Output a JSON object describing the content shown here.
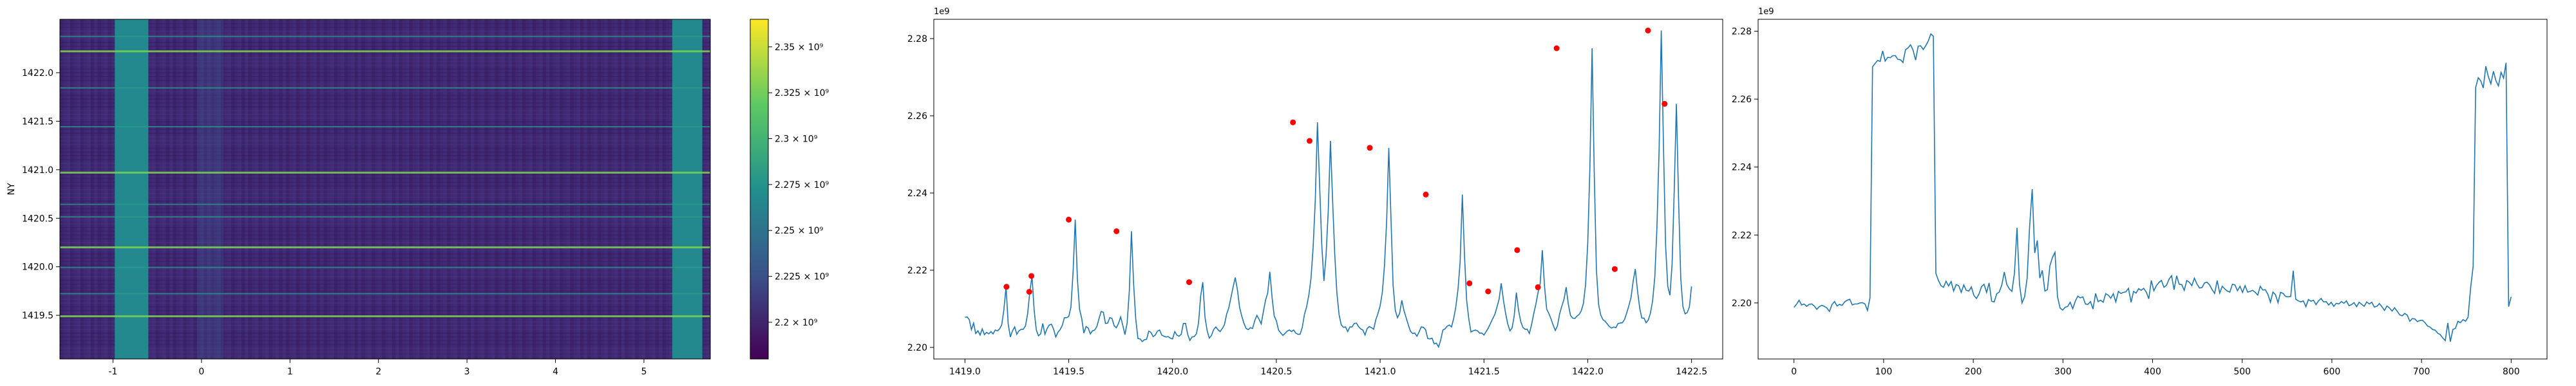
{
  "chart_data": [
    {
      "type": "heatmap",
      "ylabel": "NY",
      "xlim": [
        -1.6,
        5.75
      ],
      "ylim": [
        1419.05,
        1422.55
      ],
      "x_ticks": [
        -1,
        0,
        1,
        2,
        3,
        4,
        5
      ],
      "y_ticks": [
        1419.5,
        1420.0,
        1420.5,
        1421.0,
        1421.5,
        1422.0
      ],
      "bright_column_bands": [
        [
          -0.98,
          -0.6
        ],
        [
          5.32,
          5.66
        ]
      ],
      "bright_row_lines": [
        1419.5,
        1419.73,
        1420.0,
        1420.21,
        1420.52,
        1420.65,
        1420.98,
        1421.45,
        1421.85,
        1422.23,
        1422.38
      ],
      "colorbar": {
        "range": [
          2180000000.0,
          2365000000.0
        ],
        "tick_labels": [
          "2.2 × 10⁹",
          "2.225 × 10⁹",
          "2.25 × 10⁹",
          "2.275 × 10⁹",
          "2.3 × 10⁹",
          "2.325 × 10⁹",
          "2.35 × 10⁹"
        ],
        "tick_values": [
          2200000000.0,
          2225000000.0,
          2250000000.0,
          2275000000.0,
          2300000000.0,
          2325000000.0,
          2350000000.0
        ],
        "colors": [
          "#440154",
          "#3b528b",
          "#21908d",
          "#5dc963",
          "#fde725"
        ]
      }
    },
    {
      "type": "line",
      "offset_label": "1e9",
      "xlim": [
        1418.85,
        1422.65
      ],
      "ylim": [
        2.197,
        2.285
      ],
      "x_ticks": [
        "1419.0",
        "1419.5",
        "1420.0",
        "1420.5",
        "1421.0",
        "1421.5",
        "1422.0",
        "1422.5"
      ],
      "x_tick_values": [
        1419.0,
        1419.5,
        1420.0,
        1420.5,
        1421.0,
        1421.5,
        1422.0,
        1422.5
      ],
      "y_ticks": [
        "2.20",
        "2.22",
        "2.24",
        "2.26",
        "2.28"
      ],
      "y_tick_values": [
        2.2,
        2.22,
        2.24,
        2.26,
        2.28
      ],
      "line_color": "#1f77b4",
      "peak_color": "#ff0000",
      "series": [
        {
          "x_start": 1419.0,
          "x_end": 1422.5,
          "values": [
            2.2078,
            2.2079,
            2.2072,
            2.2046,
            2.2063,
            2.2036,
            2.2043,
            2.2032,
            2.2048,
            2.2033,
            2.2039,
            2.2035,
            2.2041,
            2.2035,
            2.2045,
            2.2043,
            2.2048,
            2.2058,
            2.2097,
            2.2157,
            2.2061,
            2.2027,
            2.2043,
            2.2053,
            2.2034,
            2.2043,
            2.2047,
            2.2047,
            2.2056,
            2.2087,
            2.2144,
            2.2185,
            2.2097,
            2.2045,
            2.203,
            2.2035,
            2.2062,
            2.2034,
            2.2049,
            2.2058,
            2.206,
            2.2047,
            2.2027,
            2.2039,
            2.2046,
            2.2057,
            2.2077,
            2.2077,
            2.208,
            2.2104,
            2.2196,
            2.2331,
            2.2177,
            2.2099,
            2.2075,
            2.2037,
            2.2054,
            2.205,
            2.2035,
            2.2043,
            2.2045,
            2.2054,
            2.2075,
            2.2093,
            2.2091,
            2.2062,
            2.2063,
            2.2077,
            2.2075,
            2.2056,
            2.2051,
            2.2062,
            2.2079,
            2.2057,
            2.2033,
            2.2063,
            2.2146,
            2.2301,
            2.2164,
            2.2073,
            2.2023,
            2.2022,
            2.2015,
            2.202,
            2.2021,
            2.2042,
            2.2039,
            2.2028,
            2.2032,
            2.2042,
            2.2045,
            2.2032,
            2.2029,
            2.2027,
            2.2028,
            2.2024,
            2.2022,
            2.2041,
            2.2032,
            2.2029,
            2.2034,
            2.2062,
            2.2062,
            2.2034,
            2.2018,
            2.2027,
            2.2028,
            2.2035,
            2.2062,
            2.2133,
            2.2169,
            2.2078,
            2.2043,
            2.2024,
            2.2031,
            2.2046,
            2.2053,
            2.2046,
            2.2041,
            2.2049,
            2.2059,
            2.2086,
            2.2102,
            2.2129,
            2.2156,
            2.2181,
            2.2149,
            2.2104,
            2.2081,
            2.2063,
            2.2049,
            2.2046,
            2.2051,
            2.2049,
            2.2069,
            2.2083,
            2.2073,
            2.2061,
            2.2093,
            2.2122,
            2.2141,
            2.2196,
            2.2131,
            2.2082,
            2.2069,
            2.2045,
            2.2038,
            2.2031,
            2.2036,
            2.2042,
            2.2045,
            2.2041,
            2.2045,
            2.2037,
            2.2034,
            2.2034,
            2.2052,
            2.2086,
            2.2105,
            2.2135,
            2.2177,
            2.2258,
            2.2383,
            2.2583,
            2.2421,
            2.2267,
            2.2172,
            2.2238,
            2.2354,
            2.2535,
            2.2384,
            2.2241,
            2.2141,
            2.2085,
            2.2059,
            2.2052,
            2.2053,
            2.2041,
            2.2053,
            2.2053,
            2.2062,
            2.2063,
            2.2054,
            2.2048,
            2.2045,
            2.2032,
            2.2049,
            2.2054,
            2.2051,
            2.2047,
            2.2072,
            2.2088,
            2.2108,
            2.2143,
            2.2212,
            2.2328,
            2.2517,
            2.2335,
            2.2161,
            2.2096,
            2.2077,
            2.2088,
            2.2122,
            2.2096,
            2.2077,
            2.2059,
            2.2042,
            2.2036,
            2.2037,
            2.2029,
            2.204,
            2.2053,
            2.2052,
            2.2046,
            2.2023,
            2.2022,
            2.2024,
            2.2009,
            2.2011,
            2.2001,
            2.2019,
            2.2045,
            2.2048,
            2.2055,
            2.2058,
            2.2053,
            2.2075,
            2.2105,
            2.2151,
            2.2222,
            2.2396,
            2.2237,
            2.2122,
            2.2073,
            2.204,
            2.2043,
            2.2045,
            2.2043,
            2.2037,
            2.2037,
            2.2032,
            2.2041,
            2.205,
            2.2062,
            2.2074,
            2.2085,
            2.2104,
            2.2125,
            2.2166,
            2.2123,
            2.2088,
            2.2061,
            2.2043,
            2.205,
            2.2082,
            2.2142,
            2.2096,
            2.2067,
            2.2052,
            2.2047,
            2.2047,
            2.2036,
            2.2059,
            2.2087,
            2.2112,
            2.2142,
            2.2166,
            2.2252,
            2.2159,
            2.2099,
            2.2088,
            2.2074,
            2.2058,
            2.2044,
            2.2056,
            2.2087,
            2.2107,
            2.2124,
            2.2156,
            2.2113,
            2.2083,
            2.2076,
            2.2075,
            2.2081,
            2.2085,
            2.2095,
            2.2114,
            2.2163,
            2.2272,
            2.2468,
            2.2775,
            2.2454,
            2.2201,
            2.2111,
            2.2084,
            2.2072,
            2.2068,
            2.2061,
            2.2054,
            2.205,
            2.2053,
            2.2051,
            2.2062,
            2.2063,
            2.2064,
            2.2072,
            2.2089,
            2.2108,
            2.2129,
            2.2172,
            2.2203,
            2.2147,
            2.2102,
            2.2076,
            2.2076,
            2.2064,
            2.2071,
            2.2089,
            2.2121,
            2.2183,
            2.2312,
            2.2515,
            2.2821,
            2.2525,
            2.2265,
            2.2158,
            2.2135,
            2.2215,
            2.2411,
            2.2631,
            2.2382,
            2.2178,
            2.2106,
            2.2087,
            2.209,
            2.2105,
            2.2158
          ]
        }
      ],
      "peaks": [
        {
          "x": 1419.2,
          "y": 2.2157
        },
        {
          "x": 1419.31,
          "y": 2.2144
        },
        {
          "x": 1419.32,
          "y": 2.2185
        },
        {
          "x": 1419.5,
          "y": 2.2331
        },
        {
          "x": 1419.73,
          "y": 2.2301
        },
        {
          "x": 1420.08,
          "y": 2.2169
        },
        {
          "x": 1420.58,
          "y": 2.2583
        },
        {
          "x": 1420.66,
          "y": 2.2535
        },
        {
          "x": 1420.95,
          "y": 2.2517
        },
        {
          "x": 1421.22,
          "y": 2.2396
        },
        {
          "x": 1421.43,
          "y": 2.2166
        },
        {
          "x": 1421.52,
          "y": 2.2145
        },
        {
          "x": 1421.66,
          "y": 2.2252
        },
        {
          "x": 1421.76,
          "y": 2.2156
        },
        {
          "x": 1421.85,
          "y": 2.2775
        },
        {
          "x": 1422.13,
          "y": 2.2203
        },
        {
          "x": 1422.29,
          "y": 2.2821
        },
        {
          "x": 1422.37,
          "y": 2.2631
        }
      ]
    },
    {
      "type": "line",
      "offset_label": "1e9",
      "xlim": [
        -40,
        840
      ],
      "ylim": [
        2.1835,
        2.2835
      ],
      "x_ticks": [
        "0",
        "100",
        "200",
        "300",
        "400",
        "500",
        "600",
        "700",
        "800"
      ],
      "x_tick_values": [
        0,
        100,
        200,
        300,
        400,
        500,
        600,
        700,
        800
      ],
      "y_ticks": [
        "2.20",
        "2.22",
        "2.24",
        "2.26",
        "2.28"
      ],
      "y_tick_values": [
        2.2,
        2.22,
        2.24,
        2.26,
        2.28
      ],
      "line_color": "#1f77b4",
      "series": [
        {
          "x_start": 0,
          "x_end": 800,
          "values": [
            2.1987,
            2.1996,
            2.2008,
            2.1994,
            2.1997,
            2.199,
            2.1996,
            2.1997,
            2.1991,
            2.1981,
            2.1989,
            2.1993,
            2.199,
            2.1985,
            2.1975,
            2.1995,
            2.2004,
            2.1991,
            2.1996,
            2.1993,
            2.2003,
            2.2008,
            2.2011,
            2.1994,
            2.1997,
            2.1997,
            2.2,
            2.2001,
            2.1997,
            2.1978,
            2.2015,
            2.2695,
            2.2705,
            2.2714,
            2.2711,
            2.2742,
            2.2712,
            2.2723,
            2.2722,
            2.2728,
            2.2728,
            2.2717,
            2.2716,
            2.2708,
            2.2745,
            2.2751,
            2.276,
            2.2744,
            2.2715,
            2.2756,
            2.2757,
            2.2746,
            2.2757,
            2.2771,
            2.2792,
            2.2785,
            2.2087,
            2.2066,
            2.2051,
            2.2046,
            2.2064,
            2.205,
            2.2063,
            2.2035,
            2.2054,
            2.2051,
            2.2031,
            2.2053,
            2.2037,
            2.2035,
            2.2047,
            2.2022,
            2.2013,
            2.2026,
            2.2048,
            2.2055,
            2.2031,
            2.2059,
            2.2005,
            2.2003,
            2.2027,
            2.2032,
            2.2053,
            2.2091,
            2.2054,
            2.2041,
            2.2034,
            2.2087,
            2.2221,
            2.2054,
            2.2,
            2.2018,
            2.2073,
            2.2226,
            2.2335,
            2.2147,
            2.2184,
            2.2073,
            2.2096,
            2.2035,
            2.2039,
            2.211,
            2.2134,
            2.2149,
            2.2018,
            2.1985,
            2.1979,
            2.1987,
            2.199,
            2.2002,
            2.1983,
            2.2005,
            2.202,
            2.2015,
            2.2018,
            2.1997,
            2.1996,
            2.2004,
            2.1982,
            2.2028,
            2.2004,
            2.2008,
            2.2002,
            2.2027,
            2.2023,
            2.2014,
            2.2027,
            2.2003,
            2.2034,
            2.2028,
            2.2031,
            2.2033,
            2.2043,
            2.2002,
            2.2034,
            2.2029,
            2.2042,
            2.2037,
            2.2043,
            2.2032,
            2.2012,
            2.2066,
            2.2036,
            2.2051,
            2.206,
            2.2066,
            2.2046,
            2.2052,
            2.207,
            2.208,
            2.2039,
            2.208,
            2.2055,
            2.2054,
            2.2037,
            2.2066,
            2.2061,
            2.2051,
            2.2073,
            2.2056,
            2.2044,
            2.2045,
            2.2059,
            2.2061,
            2.2053,
            2.2039,
            2.2028,
            2.2066,
            2.2029,
            2.2049,
            2.2041,
            2.2035,
            2.2032,
            2.2055,
            2.2053,
            2.2036,
            2.2049,
            2.2031,
            2.2051,
            2.2032,
            2.2034,
            2.2037,
            2.2031,
            2.2023,
            2.2049,
            2.2038,
            2.2039,
            2.2026,
            2.2002,
            2.2032,
            2.2024,
            2.2001,
            2.2031,
            2.2028,
            2.2019,
            2.2018,
            2.2019,
            2.2095,
            2.2011,
            2.2006,
            2.2003,
            2.2006,
            2.1989,
            2.201,
            2.2005,
            2.2008,
            2.1995,
            2.2006,
            2.2013,
            2.2003,
            2.2004,
            2.1994,
            2.2002,
            2.199,
            2.1999,
            2.1997,
            2.2004,
            2.1999,
            2.2006,
            2.1992,
            2.1995,
            2.2001,
            2.1989,
            2.2002,
            2.1996,
            2.199,
            2.2003,
            2.1997,
            2.2002,
            2.1988,
            2.199,
            2.1998,
            2.1989,
            2.1978,
            2.1991,
            2.1985,
            2.1976,
            2.1986,
            2.1976,
            2.1965,
            2.1962,
            2.1969,
            2.1964,
            2.1946,
            2.1954,
            2.1953,
            2.1945,
            2.1948,
            2.1949,
            2.1942,
            2.1932,
            2.1929,
            2.1922,
            2.192,
            2.1911,
            2.1907,
            2.1897,
            2.1889,
            2.1941,
            2.1886,
            2.1922,
            2.1925,
            2.1946,
            2.1942,
            2.1951,
            2.1946,
            2.1958,
            2.2045,
            2.2108,
            2.2634,
            2.2663,
            2.2654,
            2.2633,
            2.2697,
            2.2666,
            2.2645,
            2.2682,
            2.2654,
            2.2639,
            2.2679,
            2.2662,
            2.2707,
            2.1989,
            2.2018
          ]
        }
      ]
    }
  ]
}
